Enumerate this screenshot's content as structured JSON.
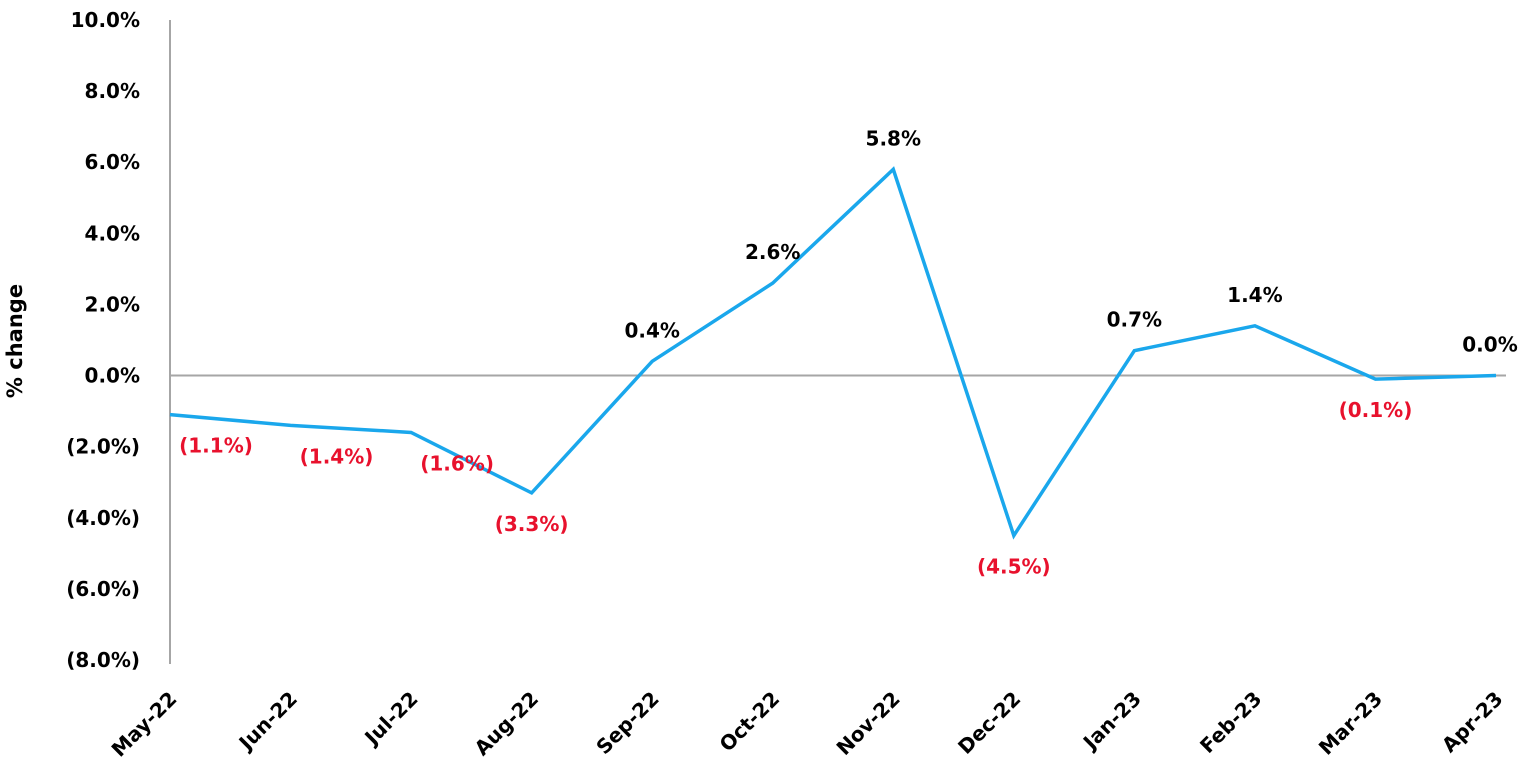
{
  "chart_data": {
    "type": "line",
    "ylabel": "% change",
    "xlabel": "",
    "categories": [
      "May-22",
      "Jun-22",
      "Jul-22",
      "Aug-22",
      "Sep-22",
      "Oct-22",
      "Nov-22",
      "Dec-22",
      "Jan-23",
      "Feb-23",
      "Mar-23",
      "Apr-23"
    ],
    "series": [
      {
        "values": [
          -1.1,
          -1.4,
          -1.6,
          -3.3,
          0.4,
          2.6,
          5.8,
          -4.5,
          0.7,
          1.4,
          -0.1,
          0.0
        ],
        "data_labels": [
          "(1.1%)",
          "(1.4%)",
          "(1.6%)",
          "(3.3%)",
          "0.4%",
          "2.6%",
          "5.8%",
          "(4.5%)",
          "0.7%",
          "1.4%",
          "(0.1%)",
          "0.0%"
        ],
        "color": "#1aa7ec"
      }
    ],
    "ylim": [
      -8.0,
      10.0
    ],
    "y_ticks": [
      10.0,
      8.0,
      6.0,
      4.0,
      2.0,
      0.0,
      -2.0,
      -4.0,
      -6.0,
      -8.0
    ],
    "y_tick_labels": [
      "10.0%",
      "8.0%",
      "6.0%",
      "4.0%",
      "2.0%",
      "0.0%",
      "(2.0%)",
      "(4.0%)",
      "(6.0%)",
      "(8.0%)"
    ],
    "grid": false,
    "colors": {
      "line": "#1aa7ec",
      "positive_label": "#000000",
      "negative_label": "#e8112d",
      "axis": "#a6a6a6"
    }
  }
}
